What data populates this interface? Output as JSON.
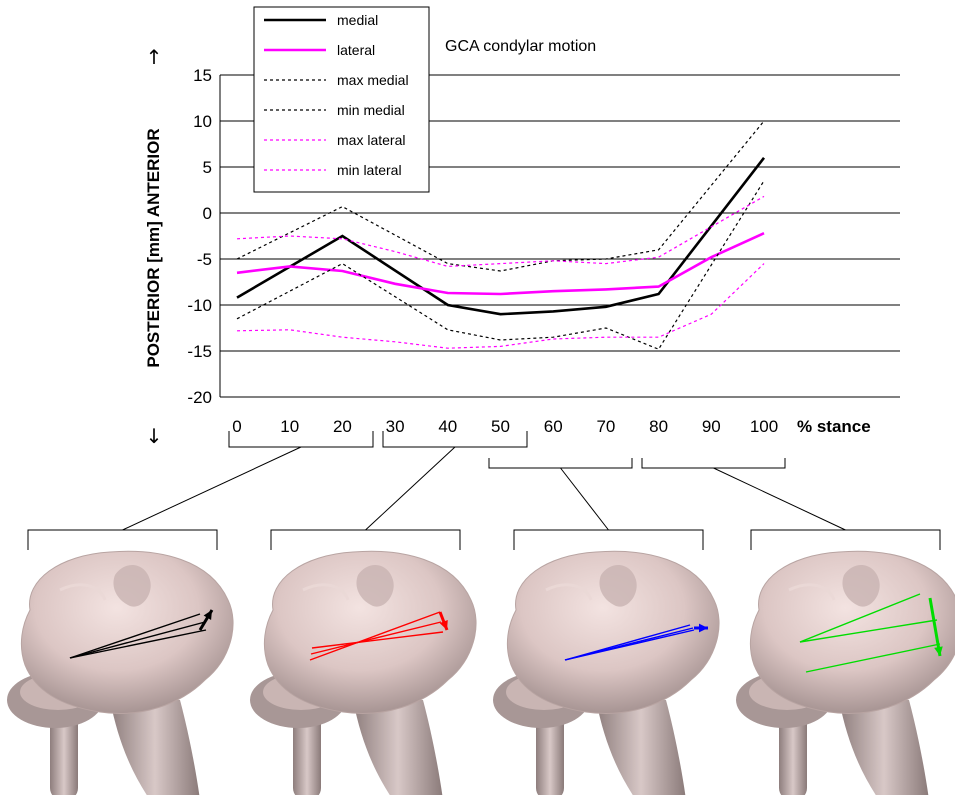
{
  "chart_data": {
    "type": "line",
    "title": "GCA condylar motion",
    "ylabel": "POSTERIOR [mm] ANTERIOR",
    "xlabel": "% stance",
    "y_up_symbol": "↑",
    "y_down_symbol": "↓",
    "ylim": [
      -20,
      15
    ],
    "yticks": [
      15,
      10,
      5,
      0,
      -5,
      -10,
      -15,
      -20
    ],
    "xlim": [
      0,
      100
    ],
    "xticks": [
      0,
      10,
      20,
      30,
      40,
      50,
      60,
      70,
      80,
      90,
      100
    ],
    "legend_position": "top-left",
    "series": [
      {
        "name": "medial",
        "color": "#000000",
        "style": "solid",
        "x": [
          0,
          20,
          40,
          50,
          60,
          70,
          80,
          100
        ],
        "y": [
          -9.2,
          -2.5,
          -10.0,
          -11.0,
          -10.7,
          -10.2,
          -8.8,
          6.0
        ]
      },
      {
        "name": "lateral",
        "color": "#ff00ff",
        "style": "solid",
        "x": [
          0,
          10,
          20,
          30,
          40,
          50,
          60,
          70,
          80,
          90,
          100
        ],
        "y": [
          -6.5,
          -5.8,
          -6.3,
          -7.7,
          -8.7,
          -8.8,
          -8.5,
          -8.3,
          -8.0,
          -4.8,
          -2.2
        ]
      },
      {
        "name": "max medial",
        "color": "#000000",
        "style": "dotted",
        "x": [
          0,
          20,
          40,
          50,
          60,
          70,
          80,
          100
        ],
        "y": [
          -5.0,
          0.7,
          -5.5,
          -6.3,
          -5.2,
          -5.0,
          -4.0,
          10.0
        ]
      },
      {
        "name": "min medial",
        "color": "#000000",
        "style": "dotted",
        "x": [
          0,
          20,
          40,
          50,
          60,
          70,
          80,
          100
        ],
        "y": [
          -11.5,
          -5.5,
          -12.7,
          -13.8,
          -13.5,
          -12.5,
          -14.8,
          3.5
        ]
      },
      {
        "name": "max lateral",
        "color": "#ff00ff",
        "style": "dotted",
        "x": [
          0,
          10,
          20,
          30,
          40,
          50,
          60,
          70,
          80,
          90,
          100
        ],
        "y": [
          -2.8,
          -2.5,
          -2.8,
          -4.2,
          -5.8,
          -5.5,
          -5.2,
          -5.5,
          -4.8,
          -1.5,
          1.8
        ]
      },
      {
        "name": "min lateral",
        "color": "#ff00ff",
        "style": "dotted",
        "x": [
          0,
          10,
          20,
          30,
          40,
          50,
          60,
          70,
          80,
          90,
          100
        ],
        "y": [
          -12.8,
          -12.7,
          -13.5,
          -14.0,
          -14.7,
          -14.5,
          -13.7,
          -13.5,
          -13.5,
          -11.0,
          -5.5
        ]
      }
    ]
  },
  "phases": [
    {
      "name": "phase-0-20",
      "x_start": 0,
      "x_end": 20,
      "arrow_color": "#000000"
    },
    {
      "name": "phase-30-50",
      "x_start": 30,
      "x_end": 50,
      "arrow_color": "#ff0000"
    },
    {
      "name": "phase-50-80",
      "x_start": 50,
      "x_end": 80,
      "arrow_color": "#0000ff"
    },
    {
      "name": "phase-80-100",
      "x_start": 80,
      "x_end": 100,
      "arrow_color": "#00dd00"
    }
  ]
}
